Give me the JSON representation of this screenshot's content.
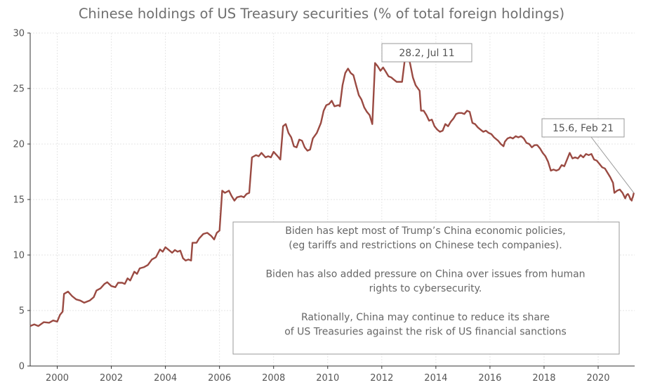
{
  "chart_data": {
    "type": "line",
    "title": "Chinese holdings of US Treasury securities (% of total foreign holdings)",
    "xlim": [
      1999.0,
      2021.35
    ],
    "ylim": [
      0,
      30
    ],
    "x_ticks": [
      2000,
      2002,
      2004,
      2006,
      2008,
      2010,
      2012,
      2014,
      2016,
      2018,
      2020
    ],
    "x_tick_labels": [
      "2000",
      "2002",
      "2004",
      "2006",
      "2008",
      "2010",
      "2012",
      "2014",
      "2016",
      "2018",
      "2020"
    ],
    "y_ticks": [
      0,
      5,
      10,
      15,
      20,
      25,
      30
    ],
    "y_tick_labels": [
      "0",
      "5",
      "10",
      "15",
      "20",
      "25",
      "30"
    ],
    "grid": true,
    "series": [
      {
        "color": "#9a4a42",
        "points": [
          [
            1999.0,
            3.6
          ],
          [
            1999.15,
            3.75
          ],
          [
            1999.3,
            3.6
          ],
          [
            1999.5,
            3.95
          ],
          [
            1999.7,
            3.9
          ],
          [
            1999.85,
            4.1
          ],
          [
            2000.0,
            4.0
          ],
          [
            2000.1,
            4.6
          ],
          [
            2000.2,
            4.9
          ],
          [
            2000.25,
            6.5
          ],
          [
            2000.4,
            6.7
          ],
          [
            2000.55,
            6.3
          ],
          [
            2000.7,
            6.0
          ],
          [
            2000.85,
            5.9
          ],
          [
            2001.0,
            5.7
          ],
          [
            2001.2,
            5.9
          ],
          [
            2001.35,
            6.2
          ],
          [
            2001.45,
            6.8
          ],
          [
            2001.6,
            7.0
          ],
          [
            2001.75,
            7.4
          ],
          [
            2001.85,
            7.55
          ],
          [
            2002.0,
            7.2
          ],
          [
            2002.15,
            7.1
          ],
          [
            2002.25,
            7.5
          ],
          [
            2002.4,
            7.5
          ],
          [
            2002.5,
            7.4
          ],
          [
            2002.6,
            7.9
          ],
          [
            2002.7,
            7.7
          ],
          [
            2002.85,
            8.5
          ],
          [
            2002.95,
            8.3
          ],
          [
            2003.05,
            8.8
          ],
          [
            2003.2,
            8.9
          ],
          [
            2003.35,
            9.1
          ],
          [
            2003.5,
            9.6
          ],
          [
            2003.65,
            9.8
          ],
          [
            2003.8,
            10.5
          ],
          [
            2003.9,
            10.3
          ],
          [
            2004.0,
            10.7
          ],
          [
            2004.1,
            10.5
          ],
          [
            2004.25,
            10.2
          ],
          [
            2004.35,
            10.45
          ],
          [
            2004.45,
            10.3
          ],
          [
            2004.55,
            10.4
          ],
          [
            2004.65,
            9.7
          ],
          [
            2004.75,
            9.5
          ],
          [
            2004.85,
            9.6
          ],
          [
            2004.95,
            9.5
          ],
          [
            2005.0,
            11.1
          ],
          [
            2005.15,
            11.1
          ],
          [
            2005.25,
            11.5
          ],
          [
            2005.4,
            11.9
          ],
          [
            2005.55,
            12.0
          ],
          [
            2005.7,
            11.7
          ],
          [
            2005.8,
            11.4
          ],
          [
            2005.9,
            12.0
          ],
          [
            2006.0,
            12.2
          ],
          [
            2006.1,
            15.8
          ],
          [
            2006.2,
            15.6
          ],
          [
            2006.35,
            15.8
          ],
          [
            2006.45,
            15.3
          ],
          [
            2006.55,
            14.9
          ],
          [
            2006.65,
            15.2
          ],
          [
            2006.8,
            15.3
          ],
          [
            2006.9,
            15.2
          ],
          [
            2007.0,
            15.5
          ],
          [
            2007.1,
            15.6
          ],
          [
            2007.2,
            18.8
          ],
          [
            2007.35,
            19.0
          ],
          [
            2007.45,
            18.9
          ],
          [
            2007.55,
            19.2
          ],
          [
            2007.7,
            18.8
          ],
          [
            2007.8,
            18.9
          ],
          [
            2007.9,
            18.8
          ],
          [
            2008.0,
            19.3
          ],
          [
            2008.15,
            18.9
          ],
          [
            2008.25,
            18.6
          ],
          [
            2008.35,
            21.6
          ],
          [
            2008.45,
            21.8
          ],
          [
            2008.55,
            21.0
          ],
          [
            2008.65,
            20.6
          ],
          [
            2008.75,
            19.8
          ],
          [
            2008.85,
            19.7
          ],
          [
            2008.95,
            20.4
          ],
          [
            2009.05,
            20.3
          ],
          [
            2009.15,
            19.7
          ],
          [
            2009.25,
            19.4
          ],
          [
            2009.35,
            19.5
          ],
          [
            2009.45,
            20.5
          ],
          [
            2009.6,
            21.0
          ],
          [
            2009.75,
            21.9
          ],
          [
            2009.85,
            23.0
          ],
          [
            2009.95,
            23.5
          ],
          [
            2010.05,
            23.6
          ],
          [
            2010.15,
            23.9
          ],
          [
            2010.25,
            23.4
          ],
          [
            2010.4,
            23.5
          ],
          [
            2010.45,
            23.4
          ],
          [
            2010.55,
            25.3
          ],
          [
            2010.65,
            26.4
          ],
          [
            2010.75,
            26.8
          ],
          [
            2010.85,
            26.4
          ],
          [
            2010.95,
            26.2
          ],
          [
            2011.05,
            25.3
          ],
          [
            2011.15,
            24.4
          ],
          [
            2011.25,
            24.0
          ],
          [
            2011.35,
            23.3
          ],
          [
            2011.45,
            22.9
          ],
          [
            2011.55,
            22.6
          ],
          [
            2011.65,
            21.8
          ],
          [
            2011.75,
            27.3
          ],
          [
            2011.85,
            27.0
          ],
          [
            2011.95,
            26.6
          ],
          [
            2012.05,
            26.9
          ],
          [
            2012.15,
            26.5
          ],
          [
            2012.25,
            26.1
          ],
          [
            2012.35,
            26.0
          ],
          [
            2012.45,
            25.8
          ],
          [
            2012.55,
            25.6
          ],
          [
            2012.65,
            25.6
          ],
          [
            2012.75,
            25.6
          ],
          [
            2012.85,
            27.6
          ],
          [
            2012.95,
            28.2
          ],
          [
            2013.05,
            27.2
          ],
          [
            2013.15,
            26.0
          ],
          [
            2013.25,
            25.3
          ],
          [
            2013.4,
            24.8
          ],
          [
            2013.45,
            23.0
          ],
          [
            2013.55,
            23.0
          ],
          [
            2013.65,
            22.6
          ],
          [
            2013.75,
            22.1
          ],
          [
            2013.85,
            22.2
          ],
          [
            2013.95,
            21.6
          ],
          [
            2014.05,
            21.3
          ],
          [
            2014.15,
            21.1
          ],
          [
            2014.25,
            21.2
          ],
          [
            2014.35,
            21.8
          ],
          [
            2014.45,
            21.6
          ],
          [
            2014.55,
            22.0
          ],
          [
            2014.65,
            22.3
          ],
          [
            2014.75,
            22.7
          ],
          [
            2014.85,
            22.8
          ],
          [
            2014.95,
            22.8
          ],
          [
            2015.05,
            22.7
          ],
          [
            2015.15,
            23.0
          ],
          [
            2015.25,
            22.9
          ],
          [
            2015.35,
            21.9
          ],
          [
            2015.45,
            21.8
          ],
          [
            2015.55,
            21.5
          ],
          [
            2015.65,
            21.3
          ],
          [
            2015.75,
            21.1
          ],
          [
            2015.85,
            21.2
          ],
          [
            2015.95,
            21.0
          ],
          [
            2016.05,
            20.9
          ],
          [
            2016.15,
            20.6
          ],
          [
            2016.3,
            20.3
          ],
          [
            2016.4,
            20.0
          ],
          [
            2016.5,
            19.8
          ],
          [
            2016.55,
            20.2
          ],
          [
            2016.65,
            20.5
          ],
          [
            2016.75,
            20.6
          ],
          [
            2016.85,
            20.5
          ],
          [
            2016.95,
            20.7
          ],
          [
            2017.05,
            20.6
          ],
          [
            2017.15,
            20.7
          ],
          [
            2017.25,
            20.5
          ],
          [
            2017.35,
            20.1
          ],
          [
            2017.45,
            20.0
          ],
          [
            2017.55,
            19.7
          ],
          [
            2017.65,
            19.9
          ],
          [
            2017.75,
            19.9
          ],
          [
            2017.85,
            19.6
          ],
          [
            2017.95,
            19.2
          ],
          [
            2018.05,
            18.9
          ],
          [
            2018.15,
            18.4
          ],
          [
            2018.25,
            17.6
          ],
          [
            2018.35,
            17.7
          ],
          [
            2018.45,
            17.6
          ],
          [
            2018.55,
            17.7
          ],
          [
            2018.65,
            18.1
          ],
          [
            2018.75,
            18.0
          ],
          [
            2018.85,
            18.6
          ],
          [
            2018.95,
            19.2
          ],
          [
            2019.05,
            18.7
          ],
          [
            2019.15,
            18.8
          ],
          [
            2019.25,
            18.7
          ],
          [
            2019.35,
            19.0
          ],
          [
            2019.45,
            18.8
          ],
          [
            2019.55,
            19.1
          ],
          [
            2019.65,
            19.0
          ],
          [
            2019.75,
            19.1
          ],
          [
            2019.85,
            18.6
          ],
          [
            2019.95,
            18.5
          ],
          [
            2020.05,
            18.2
          ],
          [
            2020.15,
            17.9
          ],
          [
            2020.25,
            17.8
          ],
          [
            2020.35,
            17.4
          ],
          [
            2020.45,
            17.0
          ],
          [
            2020.55,
            16.5
          ],
          [
            2020.6,
            15.6
          ],
          [
            2020.7,
            15.8
          ],
          [
            2020.8,
            15.9
          ],
          [
            2020.9,
            15.6
          ],
          [
            2021.0,
            15.1
          ],
          [
            2021.05,
            15.4
          ],
          [
            2021.1,
            15.5
          ],
          [
            2021.15,
            15.3
          ],
          [
            2021.2,
            15.0
          ],
          [
            2021.22,
            15.0
          ],
          [
            2021.24,
            14.9
          ],
          [
            2021.26,
            15.1
          ],
          [
            2021.28,
            15.2
          ],
          [
            2021.3,
            15.4
          ],
          [
            2021.32,
            15.6
          ]
        ]
      }
    ],
    "annotations": [
      {
        "text": "28.2, Jul 11",
        "x": 2012.95,
        "y": 28.2
      },
      {
        "text": "15.6, Feb 21",
        "x": 2021.32,
        "y": 15.6
      }
    ],
    "note": [
      "Biden has kept most of Trump’s China economic policies,",
      "(eg tariffs and restrictions on Chinese tech companies).",
      "",
      "Biden has also added pressure on China over issues from human",
      "rights to cybersecurity.",
      "",
      "Rationally, China may continue to reduce its share",
      "of US Treasuries against the risk of US financial sanctions"
    ]
  }
}
